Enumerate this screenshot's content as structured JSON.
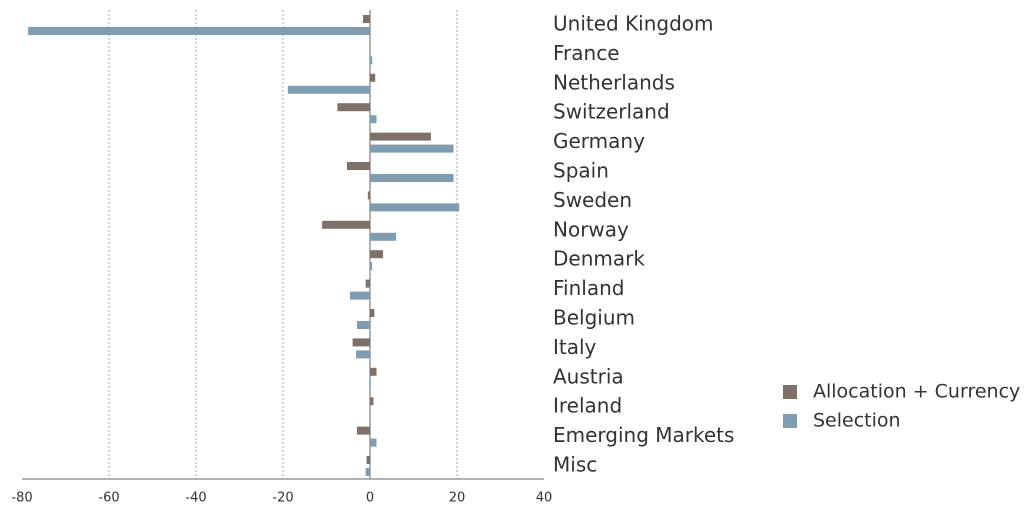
{
  "chart_data": {
    "type": "hbar",
    "categories": [
      "United Kingdom",
      "France",
      "Netherlands",
      "Switzerland",
      "Germany",
      "Spain",
      "Sweden",
      "Norway",
      "Denmark",
      "Finland",
      "Belgium",
      "Italy",
      "Austria",
      "Ireland",
      "Emerging Markets",
      "Misc"
    ],
    "series": [
      {
        "name": "Allocation + Currency",
        "color": "#7f7069",
        "values": [
          -1.6,
          0,
          1.2,
          -7.5,
          14,
          -5.3,
          -0.5,
          -11,
          3,
          -1,
          1,
          -4,
          1.5,
          0.8,
          -3,
          -0.8
        ]
      },
      {
        "name": "Selection",
        "color": "#7f9cb0",
        "values": [
          -78.6,
          0.5,
          -18.9,
          1.5,
          19.2,
          19.2,
          20.5,
          6,
          0.5,
          -4.6,
          -3,
          -3.2,
          0.2,
          0,
          1.5,
          -1
        ]
      }
    ],
    "xlim": [
      -80,
      40
    ],
    "xticks": [
      -80,
      -60,
      -40,
      -20,
      0,
      20,
      40
    ],
    "grid": true,
    "legend": "right"
  }
}
